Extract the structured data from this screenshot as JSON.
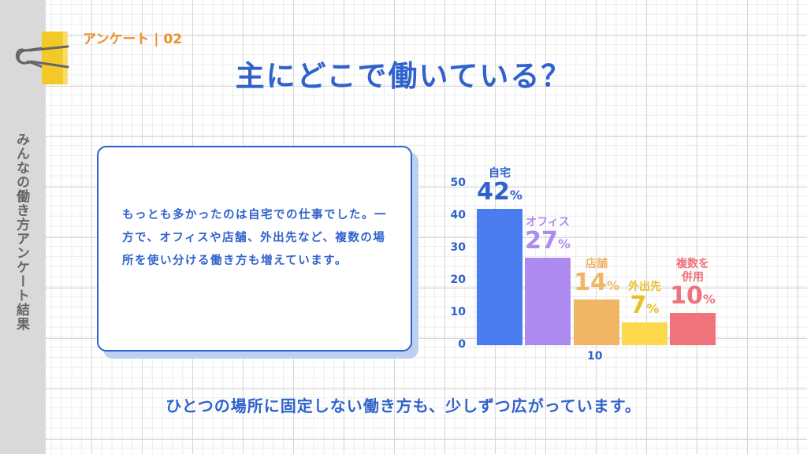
{
  "sidebar": {
    "text": "みんなの働き方アンケート結果"
  },
  "header": {
    "tag": "アンケート | 02",
    "title": "主にどこで働いている？"
  },
  "card": {
    "text": "もっとも多かったのは自宅での仕事でした。一方で、オフィスや店舗、外出先など、複数の場所を使い分ける働き方も増えています。"
  },
  "footer": {
    "text": "ひとつの場所に固定しない働き方も、少しずつ広がっています。"
  },
  "colors": {
    "primary": "#2f62cc",
    "tag": "#ec8f2a",
    "clip": "#f3c928"
  },
  "chart_data": {
    "type": "bar",
    "title": "主にどこで働いている？",
    "categories": [
      "自宅",
      "オフィス",
      "店舗",
      "外出先",
      "複数を併用"
    ],
    "values": [
      42,
      27,
      14,
      7,
      10
    ],
    "value_labels": [
      "42%",
      "27%",
      "14%",
      "7%",
      "10%"
    ],
    "colors": [
      "#4a7ef0",
      "#ad8af0",
      "#f0b565",
      "#fcd94d",
      "#ef737a"
    ],
    "label_colors": [
      "#2f62cc",
      "#ad8af0",
      "#f0b565",
      "#e8c12a",
      "#ef737a"
    ],
    "ylim": [
      0,
      50
    ],
    "yticks": [
      "0",
      "10",
      "20",
      "30",
      "40",
      "50"
    ],
    "xlabel": "10",
    "ylabel": "",
    "grid": false,
    "legend": "none"
  }
}
